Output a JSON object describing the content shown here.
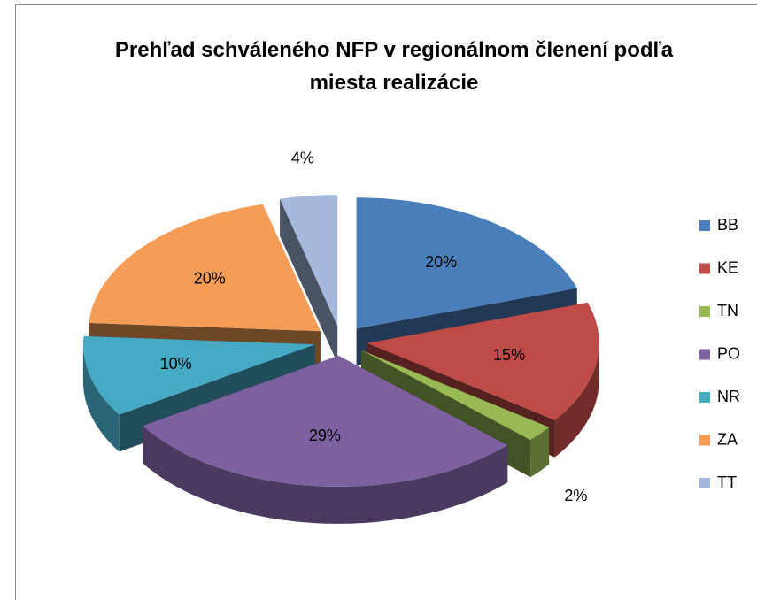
{
  "chart_data": {
    "type": "pie3d",
    "title": "Prehľad schváleného NFP v regionálnom členení podľa miesta realizácie",
    "categories": [
      "BB",
      "KE",
      "TN",
      "PO",
      "NR",
      "ZA",
      "TT"
    ],
    "values": [
      20,
      15,
      2,
      29,
      10,
      20,
      4
    ],
    "value_labels": [
      "20%",
      "15%",
      "2%",
      "29%",
      "10%",
      "20%",
      "4%"
    ],
    "colors": [
      "#4a7ebb",
      "#be4b48",
      "#98b954",
      "#7d60a0",
      "#46aac5",
      "#f59d56",
      "#a5b9dc"
    ],
    "legend": "right"
  }
}
